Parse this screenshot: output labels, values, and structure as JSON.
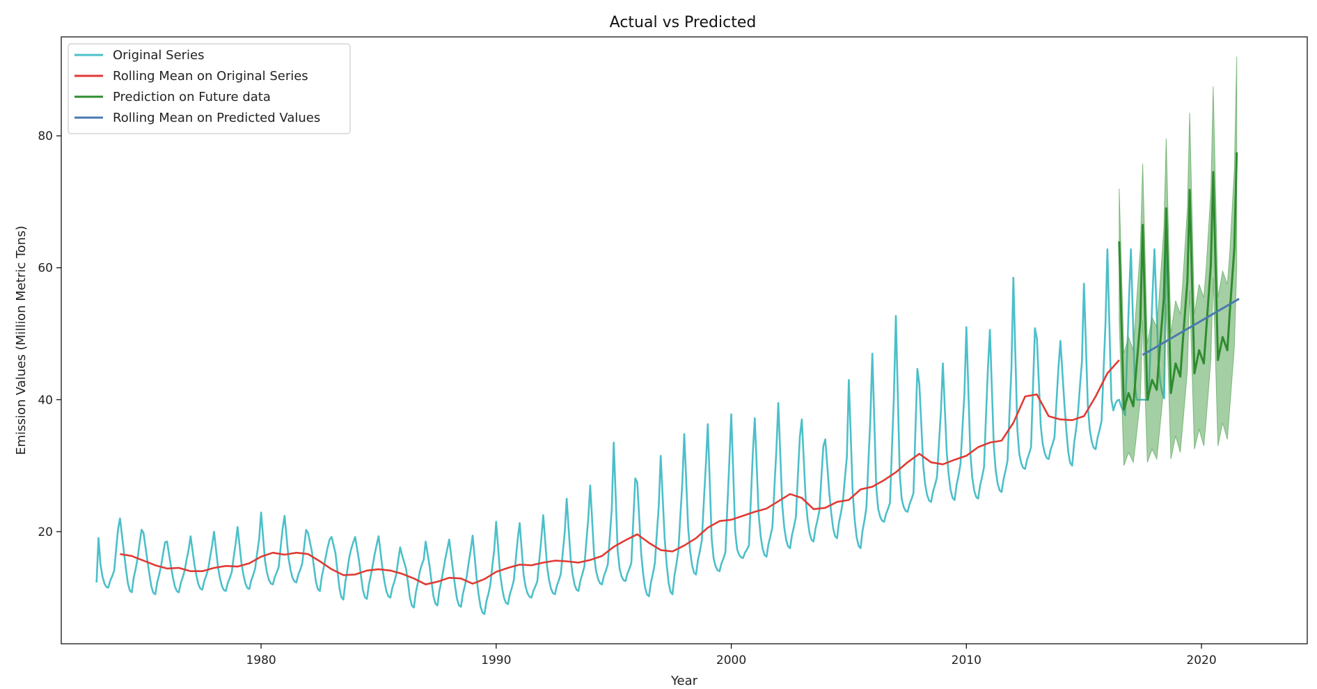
{
  "chart_data": {
    "type": "line",
    "title": "Actual vs Predicted",
    "xlabel": "Year",
    "ylabel": "Emission Values (Million Metric Tons)",
    "xlim": [
      1971.5,
      2024.5
    ],
    "ylim": [
      3.0,
      95.0
    ],
    "xticks": [
      1980,
      1990,
      2000,
      2010,
      2020
    ],
    "yticks": [
      20,
      40,
      60,
      80
    ],
    "grid": false,
    "legend_position": "top-left",
    "original": {
      "name": "Original Series",
      "color": "#4bbfc9",
      "start": [
        1973,
        1
      ],
      "step_months": 1,
      "annual_mean": [
        14.2,
        16.3,
        15.1,
        14.3,
        14.5,
        14.0,
        14.6,
        14.8,
        15.3,
        16.5,
        16.4,
        15.2,
        13.7,
        14.2,
        14.4,
        13.5,
        12.2,
        12.8,
        12.6,
        13.8,
        14.9,
        15.2,
        15.4,
        15.5,
        17.5,
        19.0,
        17.0,
        18.0,
        21.0,
        22.5,
        23.5,
        25.0,
        24.0,
        24.5,
        26.0,
        28.5,
        30.5,
        30.0,
        31.0,
        33.0,
        34.5,
        38.5,
        37.0,
        37.5,
        40.0,
        44.0
      ],
      "winter_peak": [
        23.0,
        22.0,
        19.8,
        18.5,
        19.3,
        20.0,
        20.7,
        22.9,
        22.4,
        19.8,
        19.2,
        19.2,
        19.3,
        16.4,
        18.5,
        18.8,
        19.4,
        21.5,
        21.3,
        22.5,
        25.0,
        27.0,
        33.5,
        27.5,
        31.5,
        34.8,
        36.3,
        37.8,
        37.2,
        39.5,
        37.0,
        34.0,
        43.0,
        47.0,
        52.7,
        42.4,
        45.5,
        51.0,
        50.6,
        58.5,
        49.3,
        48.9,
        57.6,
        62.8
      ],
      "summer_low": [
        11.5,
        10.8,
        10.5,
        10.8,
        11.2,
        11.0,
        11.3,
        12.0,
        12.3,
        11.0,
        9.7,
        9.8,
        10.0,
        8.5,
        8.8,
        8.6,
        7.5,
        9.0,
        10.0,
        10.5,
        11.0,
        12.0,
        12.5,
        10.2,
        10.5,
        13.5,
        14.0,
        16.0,
        16.2,
        17.5,
        18.5,
        19.0,
        17.5,
        21.5,
        23.0,
        24.5,
        24.8,
        25.0,
        26.0,
        29.5,
        31.0,
        30.0,
        32.5,
        40.0
      ]
    },
    "rolling_original": {
      "name": "Rolling Mean on Original Series",
      "color": "#e03a33",
      "x": [
        1974.0,
        1974.5,
        1975.0,
        1975.5,
        1976.0,
        1976.5,
        1977.0,
        1977.5,
        1978.0,
        1978.5,
        1979.0,
        1979.5,
        1980.0,
        1980.5,
        1981.0,
        1981.5,
        1982.0,
        1982.5,
        1983.0,
        1983.5,
        1984.0,
        1984.5,
        1985.0,
        1985.5,
        1986.0,
        1986.5,
        1987.0,
        1987.5,
        1988.0,
        1988.5,
        1989.0,
        1989.5,
        1990.0,
        1990.5,
        1991.0,
        1991.5,
        1992.0,
        1992.5,
        1993.0,
        1993.5,
        1994.0,
        1994.5,
        1995.0,
        1995.5,
        1996.0,
        1996.5,
        1997.0,
        1997.5,
        1998.0,
        1998.5,
        1999.0,
        1999.5,
        2000.0,
        2000.5,
        2001.0,
        2001.5,
        2002.0,
        2002.5,
        2003.0,
        2003.5,
        2004.0,
        2004.5,
        2005.0,
        2005.5,
        2006.0,
        2006.5,
        2007.0,
        2007.5,
        2008.0,
        2008.5,
        2009.0,
        2009.5,
        2010.0,
        2010.5,
        2011.0,
        2011.5,
        2012.0,
        2012.5,
        2013.0,
        2013.5,
        2014.0,
        2014.5,
        2015.0,
        2015.5,
        2016.0,
        2016.5
      ],
      "y": [
        16.6,
        16.3,
        15.6,
        14.9,
        14.4,
        14.5,
        14.0,
        14.0,
        14.5,
        14.8,
        14.7,
        15.2,
        16.2,
        16.8,
        16.5,
        16.8,
        16.6,
        15.5,
        14.3,
        13.4,
        13.5,
        14.1,
        14.3,
        14.1,
        13.6,
        12.9,
        12.0,
        12.4,
        13.0,
        12.9,
        12.1,
        12.8,
        13.9,
        14.5,
        15.0,
        14.9,
        15.3,
        15.6,
        15.5,
        15.3,
        15.7,
        16.3,
        17.7,
        18.7,
        19.6,
        18.3,
        17.2,
        17.0,
        17.9,
        19.0,
        20.6,
        21.6,
        21.8,
        22.4,
        23.0,
        23.5,
        24.6,
        25.7,
        25.1,
        23.4,
        23.6,
        24.5,
        24.8,
        26.4,
        26.8,
        27.8,
        29.0,
        30.5,
        31.8,
        30.5,
        30.2,
        30.9,
        31.5,
        32.8,
        33.5,
        33.8,
        36.5,
        40.5,
        40.8,
        37.5,
        37.0,
        36.9,
        37.5,
        40.5,
        44.0,
        46.0
      ]
    },
    "prediction": {
      "name": "Prediction on Future data",
      "color": "#2e8b2e",
      "band_color": "#5aa55a",
      "start": [
        2016,
        7
      ],
      "step_months": 1,
      "x": [
        2016.5,
        2016.7,
        2016.9,
        2017.1,
        2017.2,
        2017.4,
        2017.5,
        2017.7,
        2017.9,
        2018.1,
        2018.2,
        2018.4,
        2018.5,
        2018.7,
        2018.9,
        2019.1,
        2019.2,
        2019.4,
        2019.5,
        2019.7,
        2019.9,
        2020.1,
        2020.2,
        2020.4,
        2020.5,
        2020.7,
        2020.9,
        2021.1,
        2021.2,
        2021.4,
        2021.5
      ],
      "y": [
        64.0,
        38.5,
        41.0,
        39.0,
        43.5,
        52.0,
        66.5,
        40.0,
        43.0,
        41.5,
        46.5,
        55.5,
        69.0,
        41.0,
        45.5,
        43.5,
        48.5,
        58.0,
        71.8,
        44.0,
        47.5,
        45.5,
        50.5,
        60.5,
        74.5,
        46.0,
        49.5,
        47.5,
        53.0,
        63.0,
        77.5
      ],
      "lower": [
        52.0,
        30.0,
        32.0,
        30.5,
        33.5,
        40.0,
        52.0,
        30.5,
        32.5,
        31.0,
        34.5,
        42.0,
        54.5,
        31.0,
        34.5,
        32.0,
        36.0,
        44.5,
        56.5,
        32.5,
        35.5,
        33.0,
        37.0,
        46.0,
        58.5,
        33.0,
        36.5,
        34.0,
        38.5,
        48.0,
        60.0
      ],
      "upper": [
        72.0,
        47.0,
        49.5,
        47.5,
        53.0,
        63.0,
        75.8,
        48.5,
        52.5,
        51.0,
        55.5,
        66.0,
        79.6,
        50.0,
        55.0,
        53.0,
        57.5,
        69.0,
        83.5,
        53.0,
        57.5,
        55.5,
        60.0,
        71.5,
        87.5,
        55.5,
        59.5,
        57.5,
        62.0,
        75.0,
        92.0
      ]
    },
    "rolling_predicted": {
      "name": "Rolling Mean on Predicted Values",
      "color": "#4a78b0",
      "x": [
        2017.5,
        2021.6
      ],
      "y": [
        46.8,
        55.3
      ]
    }
  }
}
